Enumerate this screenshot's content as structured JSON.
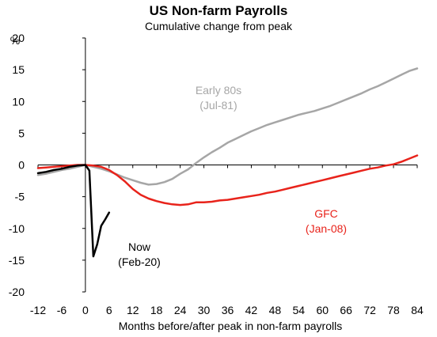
{
  "chart_data": {
    "type": "line",
    "title": "US Non-farm Payrolls",
    "subtitle": "Cumulative change from peak",
    "ylabel": "%",
    "xlabel": "Months before/after peak in non-farm payrolls",
    "xlim": [
      -12,
      84
    ],
    "ylim": [
      -20,
      20
    ],
    "xticks": [
      -12,
      -6,
      0,
      6,
      12,
      18,
      24,
      30,
      36,
      42,
      48,
      54,
      60,
      66,
      72,
      78,
      84
    ],
    "yticks": [
      20,
      15,
      10,
      5,
      0,
      -5,
      -10,
      -15,
      -20
    ],
    "grid": false,
    "series": [
      {
        "name": "Early 80s (Jul-81)",
        "label_lines": [
          "Early 80s",
          "(Jul-81)"
        ],
        "color": "#a6a6a6",
        "x": [
          -12,
          -10,
          -8,
          -6,
          -4,
          -2,
          0,
          2,
          4,
          6,
          8,
          10,
          12,
          14,
          16,
          18,
          20,
          22,
          24,
          26,
          28,
          30,
          32,
          34,
          36,
          38,
          40,
          42,
          44,
          46,
          48,
          50,
          52,
          54,
          56,
          58,
          60,
          62,
          64,
          66,
          68,
          70,
          72,
          74,
          76,
          78,
          80,
          82,
          84
        ],
        "y": [
          -1.6,
          -1.4,
          -1.1,
          -0.8,
          -0.6,
          -0.3,
          0,
          -0.3,
          -0.6,
          -1.0,
          -1.5,
          -2.0,
          -2.4,
          -2.8,
          -3.1,
          -3.0,
          -2.7,
          -2.2,
          -1.4,
          -0.7,
          0.3,
          1.2,
          2.0,
          2.7,
          3.5,
          4.1,
          4.7,
          5.3,
          5.8,
          6.3,
          6.7,
          7.1,
          7.5,
          7.9,
          8.2,
          8.5,
          8.9,
          9.3,
          9.8,
          10.3,
          10.8,
          11.3,
          11.9,
          12.4,
          13.0,
          13.6,
          14.2,
          14.8,
          15.2
        ]
      },
      {
        "name": "GFC (Jan-08)",
        "label_lines": [
          "GFC",
          "(Jan-08)"
        ],
        "color": "#e8231b",
        "x": [
          -12,
          -10,
          -8,
          -6,
          -4,
          -2,
          0,
          2,
          4,
          6,
          8,
          10,
          12,
          14,
          16,
          18,
          20,
          22,
          24,
          26,
          28,
          30,
          32,
          34,
          36,
          38,
          40,
          42,
          44,
          46,
          48,
          50,
          52,
          54,
          56,
          58,
          60,
          62,
          64,
          66,
          68,
          70,
          72,
          74,
          76,
          78,
          80,
          82,
          84
        ],
        "y": [
          -0.5,
          -0.4,
          -0.3,
          -0.2,
          -0.1,
          0,
          0,
          -0.1,
          -0.3,
          -0.8,
          -1.6,
          -2.6,
          -3.8,
          -4.7,
          -5.3,
          -5.7,
          -6.0,
          -6.2,
          -6.3,
          -6.2,
          -5.9,
          -5.9,
          -5.8,
          -5.6,
          -5.5,
          -5.3,
          -5.1,
          -4.9,
          -4.7,
          -4.4,
          -4.2,
          -3.9,
          -3.6,
          -3.3,
          -3.0,
          -2.7,
          -2.4,
          -2.1,
          -1.8,
          -1.5,
          -1.2,
          -0.9,
          -0.6,
          -0.4,
          -0.1,
          0.1,
          0.5,
          1.0,
          1.5
        ]
      },
      {
        "name": "Now (Feb-20)",
        "label_lines": [
          "Now",
          "(Feb-20)"
        ],
        "color": "#000000",
        "x": [
          -12,
          -10,
          -8,
          -6,
          -4,
          -2,
          0,
          1,
          2,
          3,
          4,
          5,
          6
        ],
        "y": [
          -1.3,
          -1.1,
          -0.8,
          -0.6,
          -0.3,
          -0.1,
          0,
          -0.9,
          -14.4,
          -12.5,
          -9.6,
          -8.6,
          -7.5
        ]
      }
    ]
  }
}
